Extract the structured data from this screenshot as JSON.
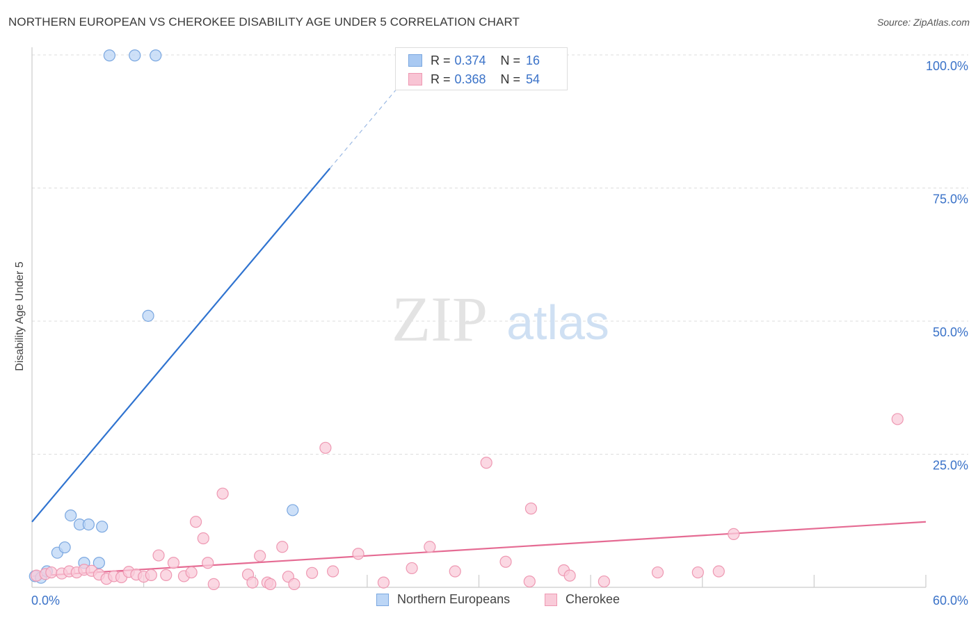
{
  "title": "NORTHERN EUROPEAN VS CHEROKEE DISABILITY AGE UNDER 5 CORRELATION CHART",
  "source": "Source: ZipAtlas.com",
  "watermark": {
    "zip": "ZIP",
    "atlas": "atlas"
  },
  "stats": [
    {
      "r_label": "R =",
      "r": "0.374",
      "n_label": "N =",
      "n": "16",
      "color": "#a9c9f2",
      "border": "#7aa7e0"
    },
    {
      "r_label": "R =",
      "r": "0.368",
      "n_label": "N =",
      "n": "54",
      "color": "#f8c4d4",
      "border": "#ee98b2"
    }
  ],
  "legend": [
    {
      "label": "Northern Europeans",
      "color": "#bcd6f6",
      "border": "#7aa7e0"
    },
    {
      "label": "Cherokee",
      "color": "#f9cbd9",
      "border": "#ee98b2"
    }
  ],
  "chart_data": {
    "type": "scatter",
    "title": "NORTHERN EUROPEAN VS CHEROKEE DISABILITY AGE UNDER 5 CORRELATION CHART",
    "xlabel": "",
    "ylabel": "Disability Age Under 5",
    "xlim": [
      0,
      60
    ],
    "ylim": [
      0,
      100
    ],
    "x_tick_labels": [
      "0.0%",
      "60.0%"
    ],
    "y_ticks": [
      25,
      50,
      75,
      100
    ],
    "y_tick_labels": [
      "25.0%",
      "50.0%",
      "75.0%",
      "100.0%"
    ],
    "grid": true,
    "legend_position": "bottom",
    "series": [
      {
        "name": "Northern Europeans",
        "color": "#7aa7e0",
        "fill": "#bcd6f6",
        "line_color": "#2f73d0",
        "trend": {
          "x0": 0.0,
          "y0": 12.3,
          "x1": 20.0,
          "y1": 78.7,
          "dashed_to_x": 25.5,
          "dashed_to_y": 97.0
        },
        "points": [
          [
            0.2,
            2.1
          ],
          [
            0.6,
            1.8
          ],
          [
            1.0,
            3.0
          ],
          [
            1.7,
            6.5
          ],
          [
            2.2,
            7.5
          ],
          [
            2.6,
            13.5
          ],
          [
            3.2,
            11.8
          ],
          [
            3.8,
            11.8
          ],
          [
            4.7,
            11.4
          ],
          [
            3.5,
            4.6
          ],
          [
            4.5,
            4.6
          ],
          [
            5.2,
            99.9
          ],
          [
            6.9,
            99.9
          ],
          [
            8.3,
            99.9
          ],
          [
            7.8,
            51.0
          ],
          [
            17.5,
            14.5
          ]
        ]
      },
      {
        "name": "Cherokee",
        "color": "#ee98b2",
        "fill": "#f9cbd9",
        "line_color": "#e56b93",
        "trend": {
          "x0": 0.0,
          "y0": 2.1,
          "x1": 60.0,
          "y1": 12.3
        },
        "points": [
          [
            0.3,
            2.2
          ],
          [
            0.9,
            2.5
          ],
          [
            1.3,
            2.8
          ],
          [
            2.0,
            2.6
          ],
          [
            2.5,
            3.0
          ],
          [
            3.0,
            2.8
          ],
          [
            3.5,
            3.3
          ],
          [
            4.0,
            3.1
          ],
          [
            4.5,
            2.4
          ],
          [
            5.0,
            1.6
          ],
          [
            5.5,
            2.1
          ],
          [
            6.0,
            1.9
          ],
          [
            6.5,
            2.9
          ],
          [
            7.0,
            2.4
          ],
          [
            7.5,
            2.0
          ],
          [
            8.0,
            2.3
          ],
          [
            8.5,
            6.0
          ],
          [
            9.0,
            2.3
          ],
          [
            9.5,
            4.6
          ],
          [
            10.2,
            2.1
          ],
          [
            10.7,
            2.8
          ],
          [
            11.0,
            12.3
          ],
          [
            11.5,
            9.2
          ],
          [
            11.8,
            4.6
          ],
          [
            12.2,
            0.6
          ],
          [
            12.8,
            17.6
          ],
          [
            14.5,
            2.4
          ],
          [
            14.8,
            0.9
          ],
          [
            15.3,
            5.9
          ],
          [
            15.8,
            0.9
          ],
          [
            16.0,
            0.6
          ],
          [
            16.8,
            7.6
          ],
          [
            17.2,
            2.0
          ],
          [
            17.6,
            0.6
          ],
          [
            18.8,
            2.7
          ],
          [
            19.7,
            26.2
          ],
          [
            21.9,
            6.3
          ],
          [
            23.6,
            0.9
          ],
          [
            25.5,
            3.6
          ],
          [
            26.7,
            7.6
          ],
          [
            28.4,
            3.0
          ],
          [
            30.5,
            23.4
          ],
          [
            31.8,
            4.8
          ],
          [
            33.4,
            1.1
          ],
          [
            33.5,
            14.8
          ],
          [
            35.7,
            3.2
          ],
          [
            36.1,
            2.2
          ],
          [
            38.4,
            1.1
          ],
          [
            42.0,
            2.8
          ],
          [
            44.7,
            2.8
          ],
          [
            46.1,
            3.0
          ],
          [
            47.1,
            10.0
          ],
          [
            58.1,
            31.6
          ],
          [
            20.2,
            3.0
          ]
        ]
      }
    ]
  }
}
